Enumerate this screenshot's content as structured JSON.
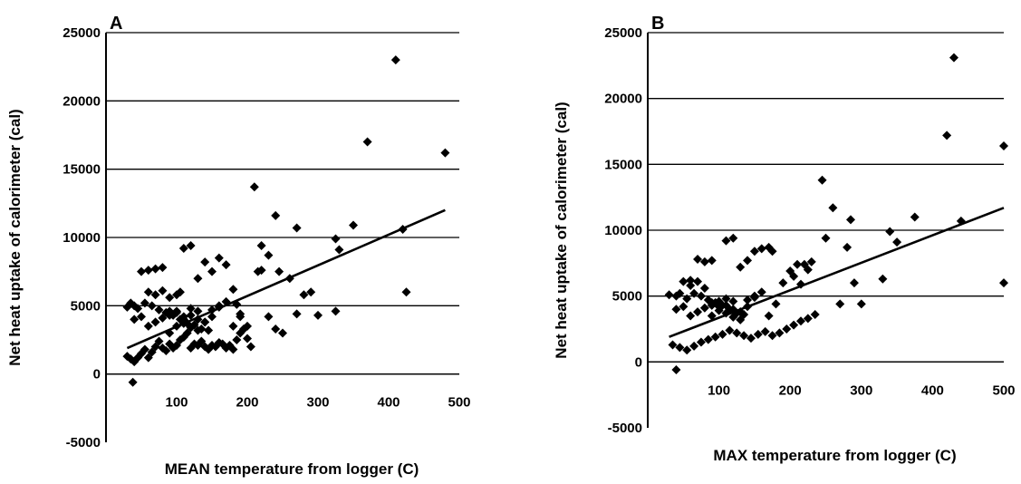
{
  "chart_data": [
    {
      "panel_label": "A",
      "type": "scatter",
      "xlabel": "MEAN temperature from logger (C)",
      "ylabel": "Net heat uptake of calorimeter (cal)",
      "xlim": [
        0,
        500
      ],
      "ylim": [
        -5000,
        25000
      ],
      "xticks": [
        100,
        200,
        300,
        400,
        500
      ],
      "yticks": [
        -5000,
        0,
        5000,
        10000,
        15000,
        20000,
        25000
      ],
      "grid": "horizontal",
      "trendline": {
        "x": [
          30,
          480
        ],
        "y": [
          1900,
          12000
        ]
      },
      "x": [
        410,
        480,
        370,
        210,
        240,
        350,
        270,
        325,
        330,
        420,
        425,
        325,
        220,
        230,
        245,
        260,
        290,
        280,
        270,
        300,
        230,
        240,
        250,
        180,
        185,
        190,
        195,
        200,
        205,
        215,
        220,
        170,
        160,
        150,
        140,
        130,
        120,
        110,
        105,
        100,
        90,
        80,
        70,
        60,
        50,
        40,
        30,
        30,
        35,
        40,
        45,
        50,
        55,
        60,
        65,
        70,
        75,
        80,
        85,
        90,
        95,
        100,
        105,
        110,
        115,
        120,
        125,
        130,
        135,
        140,
        145,
        150,
        155,
        160,
        165,
        170,
        175,
        180,
        185,
        190,
        195,
        200,
        90,
        100,
        110,
        120,
        130,
        140,
        150,
        160,
        170,
        180,
        190,
        60,
        70,
        80,
        90,
        100,
        110,
        120,
        130,
        140,
        150,
        160,
        40,
        50,
        60,
        70,
        80,
        90,
        100,
        110,
        120,
        130,
        35,
        45,
        55,
        65,
        75,
        85,
        95,
        105,
        115,
        125,
        135,
        145
      ],
      "y": [
        23000,
        16200,
        17000,
        13700,
        11600,
        10900,
        10700,
        9900,
        9100,
        10600,
        6000,
        4600,
        9400,
        8700,
        7500,
        7000,
        6000,
        5800,
        4400,
        4300,
        4200,
        3300,
        3000,
        6200,
        5100,
        4200,
        3300,
        2600,
        2000,
        7500,
        7600,
        8000,
        8500,
        7500,
        8200,
        7000,
        9400,
        9200,
        6000,
        5800,
        4600,
        7800,
        7700,
        7600,
        7500,
        5000,
        4900,
        1300,
        1100,
        900,
        1200,
        1500,
        1800,
        1200,
        1600,
        2000,
        2400,
        1900,
        1700,
        2200,
        1900,
        2100,
        2500,
        2700,
        3000,
        1900,
        2200,
        2100,
        2400,
        2000,
        1800,
        2100,
        2000,
        2300,
        2200,
        1900,
        2100,
        1800,
        2500,
        3000,
        3300,
        3500,
        3000,
        3500,
        4000,
        4300,
        4600,
        3800,
        4200,
        5000,
        5300,
        3500,
        4400,
        6000,
        5800,
        6100,
        5600,
        4500,
        4200,
        4800,
        4000,
        3800,
        4700,
        4900,
        4000,
        4200,
        3500,
        3800,
        4100,
        4300,
        4600,
        3700,
        3400,
        3200,
        5200,
        4800,
        5200,
        5000,
        4700,
        4500,
        4300,
        4000,
        3700,
        3600,
        3300,
        3200
      ],
      "outliers": [
        {
          "x": 38,
          "y": -600
        }
      ]
    },
    {
      "panel_label": "B",
      "type": "scatter",
      "xlabel": "MAX temperature from logger (C)",
      "ylabel": "Net heat uptake of calorimeter (cal)",
      "xlim": [
        0,
        500
      ],
      "ylim": [
        -5000,
        25000
      ],
      "xticks": [
        100,
        200,
        300,
        400,
        500
      ],
      "yticks": [
        -5000,
        0,
        5000,
        10000,
        15000,
        20000,
        25000
      ],
      "grid": "horizontal",
      "trendline": {
        "x": [
          30,
          500
        ],
        "y": [
          1900,
          11700
        ]
      },
      "x": [
        430,
        420,
        500,
        500,
        245,
        260,
        285,
        280,
        250,
        375,
        340,
        350,
        330,
        440,
        290,
        300,
        270,
        220,
        225,
        230,
        200,
        205,
        210,
        215,
        175,
        170,
        160,
        150,
        140,
        130,
        120,
        110,
        100,
        90,
        80,
        70,
        60,
        50,
        40,
        30,
        35,
        45,
        55,
        65,
        75,
        85,
        95,
        105,
        115,
        125,
        135,
        145,
        155,
        165,
        175,
        185,
        195,
        205,
        215,
        225,
        235,
        90,
        100,
        110,
        120,
        130,
        140,
        150,
        160,
        170,
        180,
        190,
        60,
        70,
        80,
        90,
        100,
        110,
        120,
        130,
        140,
        150,
        40,
        50,
        60,
        70,
        80,
        90,
        100,
        110,
        120,
        130,
        45,
        55,
        65,
        75,
        85,
        95,
        105,
        115,
        125,
        135
      ],
      "y": [
        23100,
        17200,
        16400,
        6000,
        13800,
        11700,
        10800,
        8700,
        9400,
        11000,
        9900,
        9100,
        6300,
        10700,
        6000,
        4400,
        4400,
        7400,
        7000,
        7600,
        6900,
        6500,
        7400,
        5900,
        8400,
        8700,
        8600,
        8400,
        7700,
        7200,
        9400,
        9200,
        4500,
        7700,
        7600,
        7800,
        6200,
        6100,
        5000,
        5100,
        1300,
        1100,
        900,
        1200,
        1500,
        1700,
        1900,
        2100,
        2400,
        2200,
        2000,
        1800,
        2100,
        2300,
        2000,
        2200,
        2500,
        2800,
        3100,
        3300,
        3600,
        3500,
        3900,
        4300,
        4600,
        3800,
        4200,
        5000,
        5300,
        3500,
        4400,
        6000,
        5800,
        6100,
        5600,
        4500,
        4200,
        4800,
        4000,
        3800,
        4700,
        4900,
        4000,
        4200,
        3500,
        3800,
        4100,
        4300,
        4600,
        3700,
        3400,
        3200,
        5200,
        4800,
        5200,
        5000,
        4700,
        4500,
        4300,
        4000,
        3700,
        3600
      ],
      "outliers": [
        {
          "x": 40,
          "y": -600
        }
      ]
    }
  ]
}
